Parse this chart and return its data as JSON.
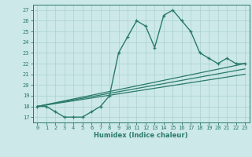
{
  "xlabel": "Humidex (Indice chaleur)",
  "bg_color": "#cce8e8",
  "grid_color": "#b0d4d4",
  "line_color": "#2a7a6a",
  "xlim": [
    -0.5,
    23.5
  ],
  "ylim": [
    16.5,
    27.5
  ],
  "yticks": [
    17,
    18,
    19,
    20,
    21,
    22,
    23,
    24,
    25,
    26,
    27
  ],
  "xticks": [
    0,
    1,
    2,
    3,
    4,
    5,
    6,
    7,
    8,
    9,
    10,
    11,
    12,
    13,
    14,
    15,
    16,
    17,
    18,
    19,
    20,
    21,
    22,
    23
  ],
  "series": [
    {
      "x": [
        0,
        1,
        2,
        3,
        4,
        5,
        6,
        7,
        8,
        9,
        10,
        11,
        12,
        13,
        14,
        15,
        16,
        17,
        18,
        19,
        20,
        21,
        22,
        23
      ],
      "y": [
        18,
        18,
        17.5,
        17,
        17,
        17,
        17.5,
        18,
        19,
        23,
        24.5,
        26,
        25.5,
        23.5,
        26.5,
        27,
        26,
        25,
        23,
        22.5,
        22,
        22.5,
        22,
        22
      ],
      "marker": true,
      "lw": 1.0
    },
    {
      "x": [
        0,
        23
      ],
      "y": [
        18,
        22
      ],
      "marker": false,
      "lw": 0.9
    },
    {
      "x": [
        0,
        23
      ],
      "y": [
        18,
        21.5
      ],
      "marker": false,
      "lw": 0.9
    },
    {
      "x": [
        0,
        23
      ],
      "y": [
        18,
        21.0
      ],
      "marker": false,
      "lw": 0.9
    }
  ]
}
